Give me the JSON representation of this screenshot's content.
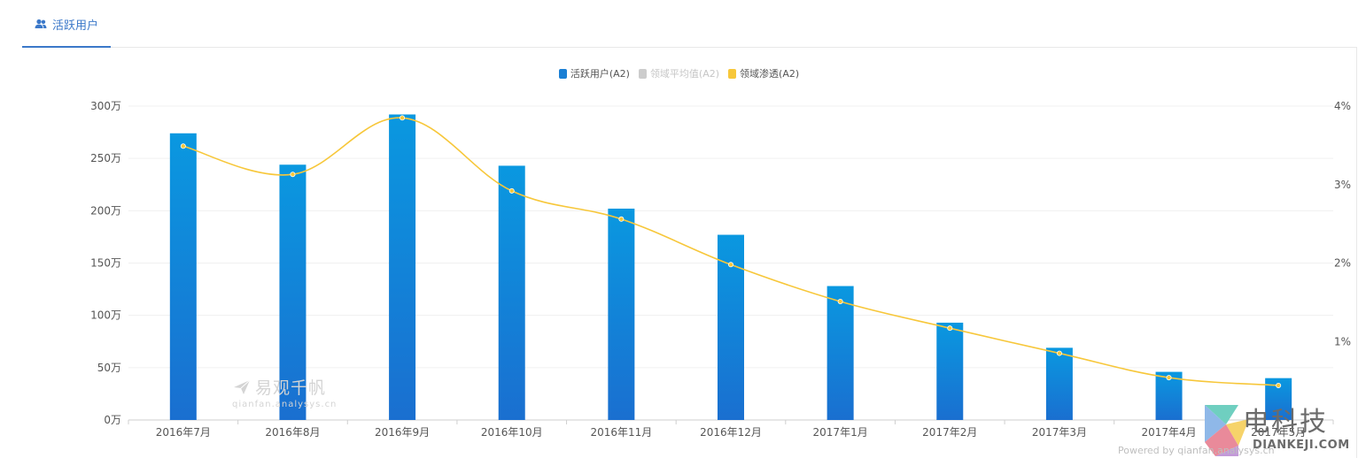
{
  "tab": {
    "label": "活跃用户"
  },
  "legend": [
    {
      "label": "活跃用户(A2)",
      "color": "#1a7fd4",
      "active": true
    },
    {
      "label": "领域平均值(A2)",
      "color": "#cccccc",
      "active": false
    },
    {
      "label": "领域渗透(A2)",
      "color": "#f7c73a",
      "active": true
    }
  ],
  "chart_data": {
    "type": "bar",
    "categories": [
      "2016年7月",
      "2016年8月",
      "2016年9月",
      "2016年10月",
      "2016年11月",
      "2016年12月",
      "2017年1月",
      "2017年2月",
      "2017年3月",
      "2017年4月",
      "2017年5月"
    ],
    "series": [
      {
        "name": "活跃用户(A2)",
        "type": "bar",
        "axis": "left",
        "color": "#1a7fd4",
        "values": [
          274,
          244,
          292,
          243,
          202,
          177,
          128,
          93,
          69,
          46,
          40
        ]
      },
      {
        "name": "领域渗透(A2)",
        "type": "line",
        "axis": "right",
        "color": "#f7c73a",
        "values": [
          3.49,
          3.13,
          3.85,
          2.92,
          2.56,
          1.98,
          1.51,
          1.17,
          0.85,
          0.54,
          0.44
        ]
      }
    ],
    "yAxisLeft": {
      "ticks": [
        "0万",
        "50万",
        "100万",
        "150万",
        "200万",
        "250万",
        "300万"
      ],
      "min": 0,
      "max": 300
    },
    "yAxisRight": {
      "ticks": [
        "1%",
        "2%",
        "3%",
        "4%"
      ],
      "min": 0,
      "max": 4
    },
    "grid": true,
    "legend_position": "top-center"
  },
  "watermark": {
    "title": "易观千帆",
    "url": "qianfan.analysys.cn"
  },
  "brand": {
    "name": "电科技",
    "domain": "DIANKEJI.COM"
  },
  "powered_by": "Powered by qianfan.analysys.cn"
}
